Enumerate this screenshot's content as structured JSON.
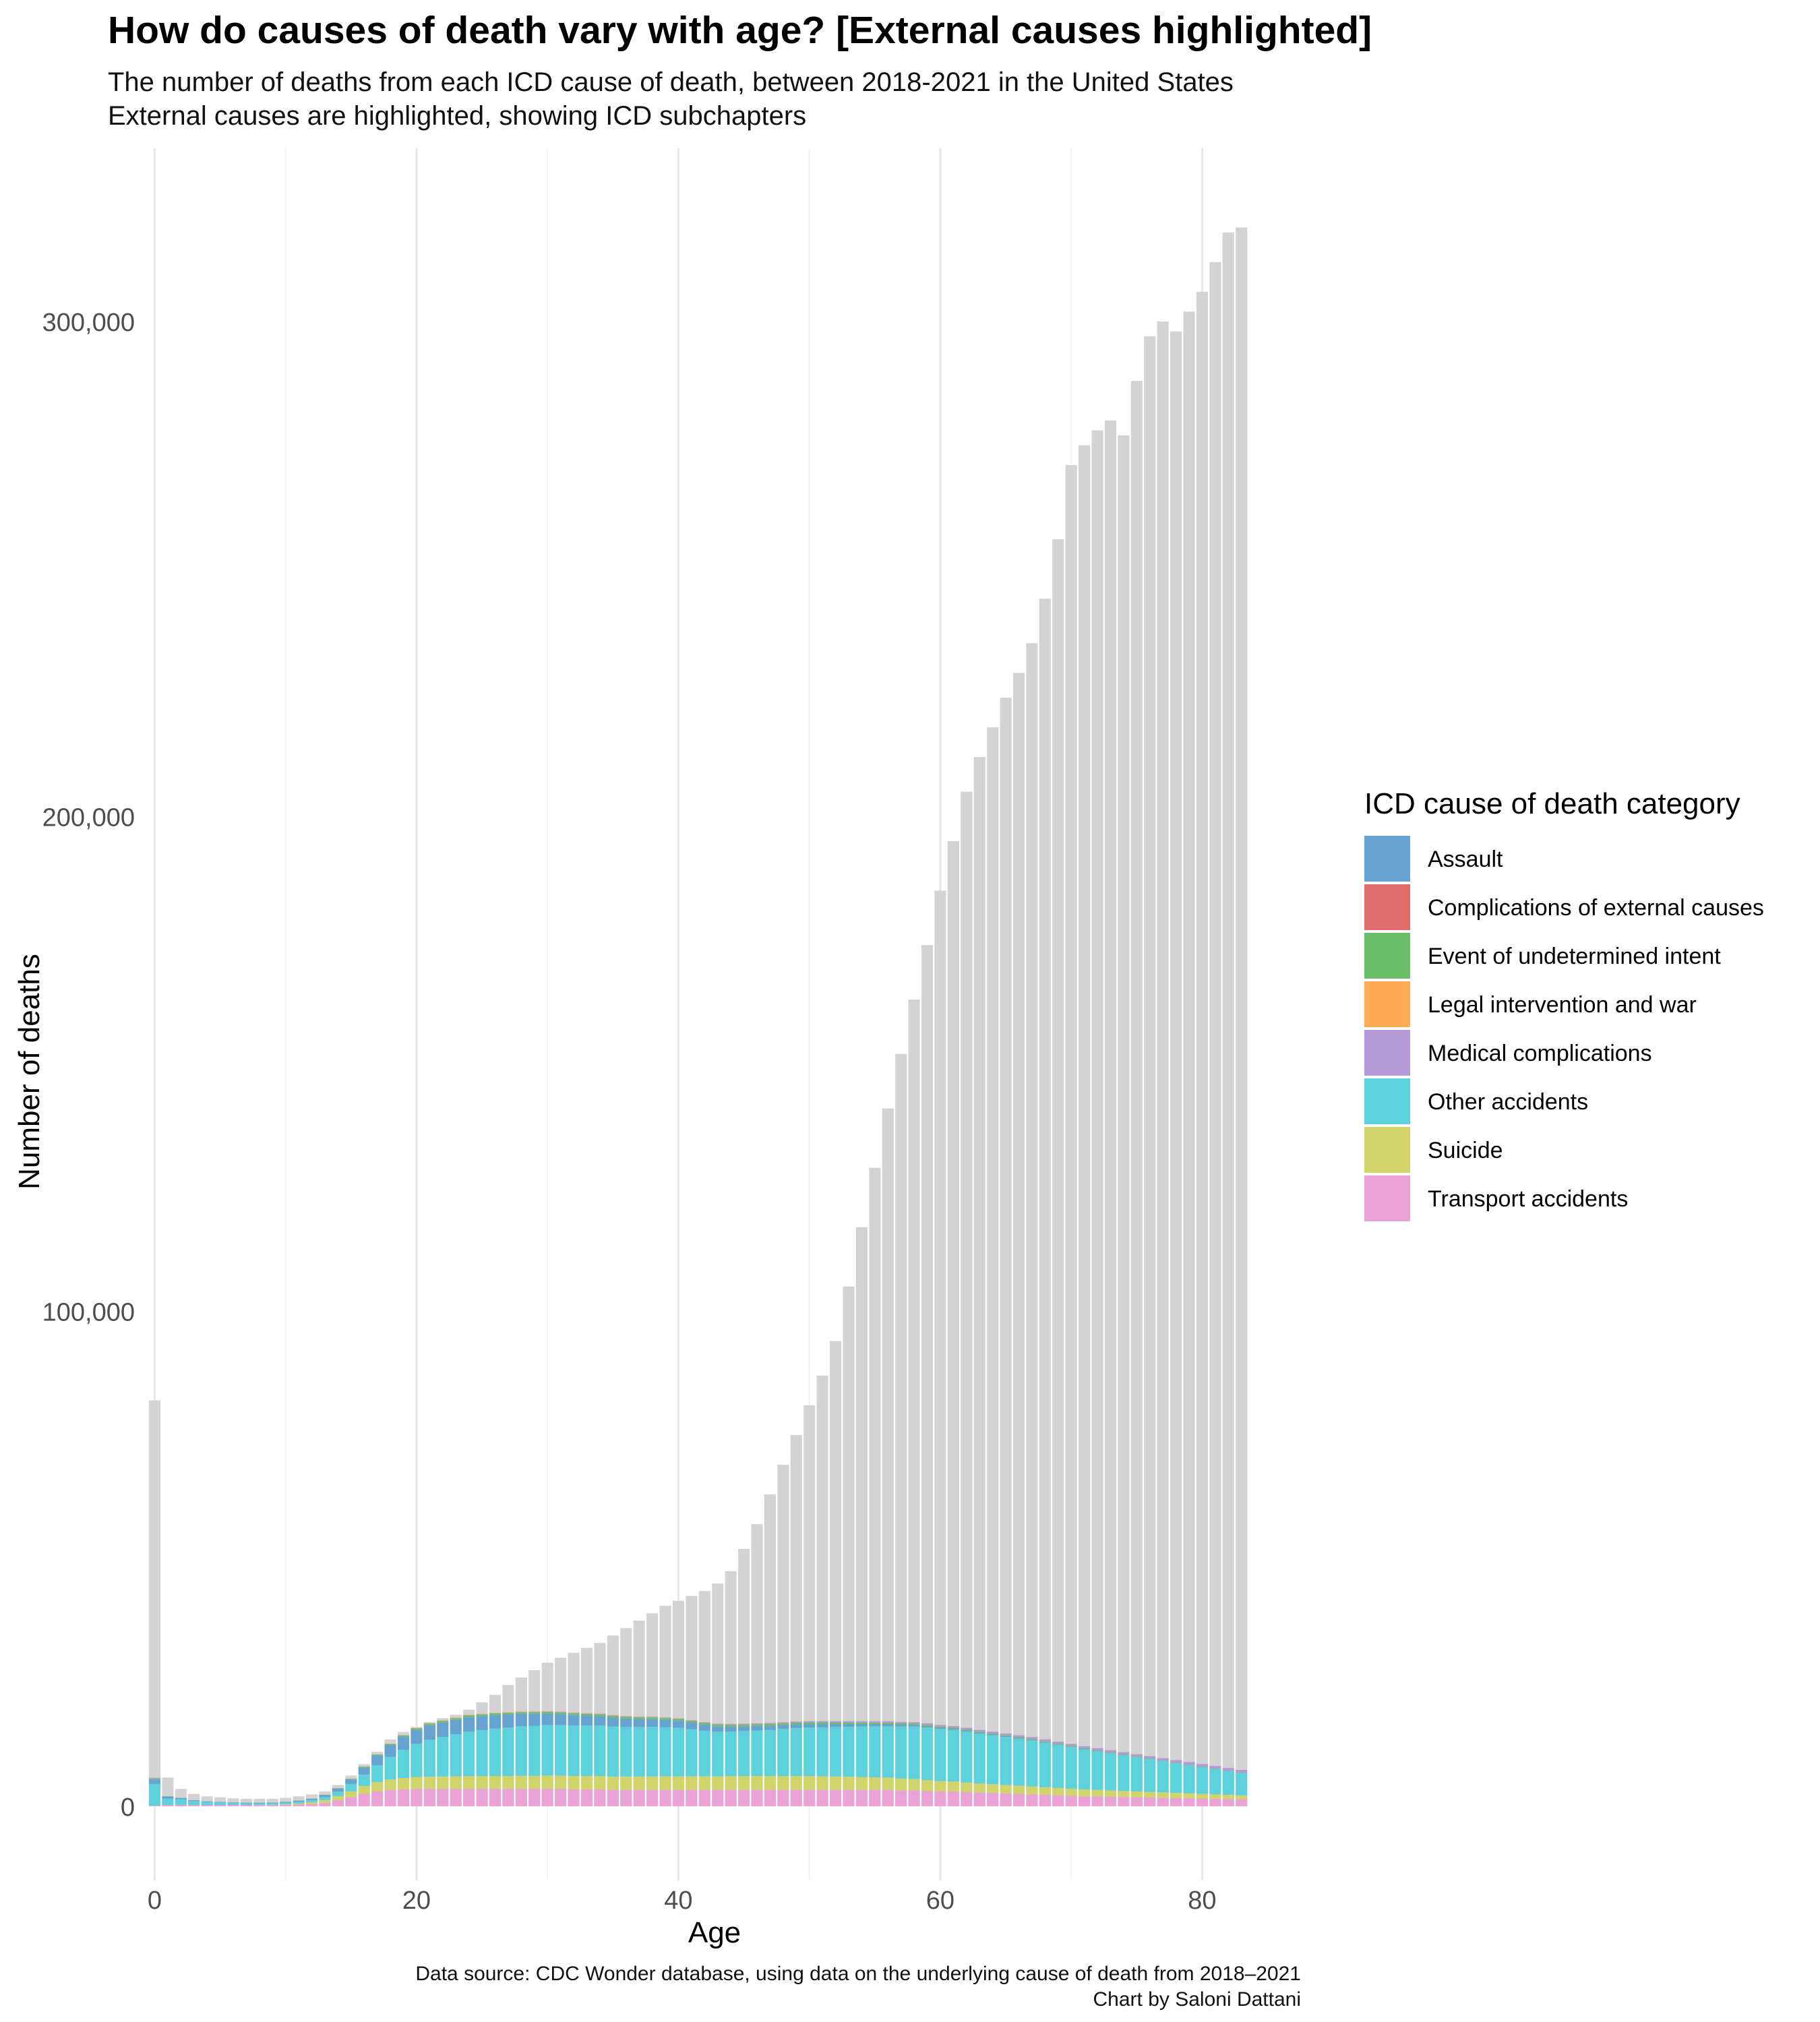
{
  "title": "How do causes of death vary with age? [External causes highlighted]",
  "subtitle_line1": "The number of deaths from each ICD cause of death, between 2018-2021 in the United States",
  "subtitle_line2": "External causes are highlighted, showing ICD subchapters",
  "caption_line1": "Data source: CDC Wonder database, using data on the underlying cause of death from 2018–2021",
  "caption_line2": "Chart by Saloni Dattani",
  "legend": {
    "title": "ICD cause of death category",
    "items": [
      {
        "label": "Assault",
        "color": "#66a3d2"
      },
      {
        "label": "Complications of external causes",
        "color": "#e06c6c"
      },
      {
        "label": "Event of undetermined intent",
        "color": "#6bbf6b"
      },
      {
        "label": "Legal intervention and war",
        "color": "#ffaa55"
      },
      {
        "label": "Medical complications",
        "color": "#b49ad6"
      },
      {
        "label": "Other accidents",
        "color": "#5dd2dd"
      },
      {
        "label": "Suicide",
        "color": "#d0d46a"
      },
      {
        "label": "Transport accidents",
        "color": "#eba2d6"
      }
    ]
  },
  "chart_data": {
    "type": "bar",
    "stacked": true,
    "xlabel": "Age",
    "ylabel": "Number of deaths",
    "x_ticks": [
      0,
      20,
      40,
      60,
      80
    ],
    "y_ticks": [
      0,
      100000,
      200000,
      300000
    ],
    "y_tick_labels": [
      "0",
      "100,000",
      "200,000",
      "300,000"
    ],
    "xlim": [
      -1,
      86
    ],
    "ylim": [
      -15000,
      335000
    ],
    "grid": "vertical major and minor lines",
    "background_series": {
      "name": "All causes",
      "color": "#d3d3d3"
    },
    "ages": [
      0,
      1,
      2,
      3,
      4,
      5,
      6,
      7,
      8,
      9,
      10,
      11,
      12,
      13,
      14,
      15,
      16,
      17,
      18,
      19,
      20,
      21,
      22,
      23,
      24,
      25,
      26,
      27,
      28,
      29,
      30,
      31,
      32,
      33,
      34,
      35,
      36,
      37,
      38,
      39,
      40,
      41,
      42,
      43,
      44,
      45,
      46,
      47,
      48,
      49,
      50,
      51,
      52,
      53,
      54,
      55,
      56,
      57,
      58,
      59,
      60,
      61,
      62,
      63,
      64,
      65,
      66,
      67,
      68,
      69,
      70,
      71,
      72,
      73,
      74,
      75,
      76,
      77,
      78,
      79,
      80,
      81,
      82,
      83,
      84
    ],
    "total_deaths": [
      82000,
      5800,
      3500,
      2500,
      2000,
      1800,
      1600,
      1500,
      1500,
      1500,
      1700,
      2000,
      2400,
      3000,
      4300,
      6200,
      8500,
      11000,
      13500,
      15000,
      16000,
      17000,
      17800,
      18500,
      19500,
      21000,
      22500,
      24500,
      26000,
      27500,
      29000,
      30000,
      31000,
      32000,
      33000,
      34500,
      36000,
      37500,
      39000,
      40500,
      41500,
      42500,
      43500,
      45000,
      47500,
      52000,
      57000,
      63000,
      69000,
      75000,
      81000,
      87000,
      94000,
      105000,
      117000,
      129000,
      141000,
      152000,
      163000,
      174000,
      185000,
      195000,
      205000,
      212000,
      218000,
      224000,
      229000,
      235000,
      244000,
      256000,
      271000,
      275000,
      278000,
      280000,
      277000,
      288000,
      297000,
      300000,
      298000,
      302000,
      306000,
      312000,
      318000,
      319000,
      0
    ],
    "series": [
      {
        "name": "Transport accidents",
        "values": [
          100,
          250,
          300,
          250,
          250,
          250,
          250,
          250,
          250,
          250,
          300,
          350,
          450,
          700,
          1200,
          1800,
          2500,
          3000,
          3300,
          3400,
          3500,
          3500,
          3500,
          3500,
          3500,
          3500,
          3500,
          3500,
          3500,
          3500,
          3500,
          3500,
          3400,
          3400,
          3400,
          3300,
          3300,
          3300,
          3300,
          3300,
          3300,
          3300,
          3300,
          3300,
          3300,
          3300,
          3300,
          3300,
          3300,
          3300,
          3300,
          3300,
          3300,
          3300,
          3300,
          3300,
          3300,
          3200,
          3200,
          3100,
          3000,
          3000,
          2900,
          2800,
          2700,
          2600,
          2500,
          2400,
          2300,
          2200,
          2100,
          2000,
          1950,
          1900,
          1850,
          1800,
          1750,
          1700,
          1650,
          1600,
          1550,
          1500,
          1450,
          1400,
          0
        ]
      },
      {
        "name": "Suicide",
        "values": [
          0,
          0,
          0,
          0,
          0,
          0,
          0,
          0,
          20,
          50,
          100,
          200,
          350,
          550,
          850,
          1200,
          1600,
          1900,
          2100,
          2300,
          2400,
          2450,
          2500,
          2550,
          2600,
          2600,
          2600,
          2600,
          2650,
          2650,
          2700,
          2700,
          2700,
          2700,
          2700,
          2700,
          2700,
          2700,
          2750,
          2750,
          2750,
          2750,
          2750,
          2750,
          2800,
          2800,
          2800,
          2800,
          2800,
          2800,
          2800,
          2750,
          2700,
          2650,
          2600,
          2550,
          2500,
          2400,
          2300,
          2200,
          2100,
          2000,
          1900,
          1800,
          1750,
          1700,
          1650,
          1600,
          1550,
          1500,
          1450,
          1400,
          1350,
          1300,
          1250,
          1200,
          1150,
          1100,
          1050,
          1000,
          950,
          900,
          850,
          800,
          0
        ]
      },
      {
        "name": "Other accidents",
        "values": [
          4400,
          1300,
          1100,
          800,
          600,
          500,
          400,
          350,
          320,
          300,
          330,
          380,
          450,
          600,
          900,
          1500,
          2300,
          3400,
          4600,
          5700,
          6700,
          7500,
          8000,
          8500,
          9000,
          9300,
          9600,
          9800,
          10000,
          10100,
          10200,
          10200,
          10200,
          10200,
          10200,
          10100,
          10000,
          10000,
          10000,
          9900,
          9800,
          9500,
          9200,
          9000,
          9000,
          9100,
          9200,
          9300,
          9500,
          9700,
          9800,
          9900,
          10000,
          10100,
          10200,
          10300,
          10400,
          10500,
          10600,
          10600,
          10500,
          10400,
          10300,
          10100,
          9900,
          9700,
          9500,
          9300,
          9000,
          8700,
          8400,
          8100,
          7800,
          7500,
          7200,
          6900,
          6600,
          6300,
          6000,
          5700,
          5400,
          5100,
          4800,
          4500,
          0
        ]
      },
      {
        "name": "Assault",
        "values": [
          900,
          400,
          250,
          150,
          120,
          100,
          100,
          100,
          100,
          110,
          130,
          180,
          250,
          400,
          600,
          900,
          1400,
          1900,
          2300,
          2600,
          2800,
          2900,
          2900,
          2900,
          2900,
          2800,
          2700,
          2600,
          2500,
          2400,
          2300,
          2200,
          2100,
          2000,
          1900,
          1800,
          1700,
          1600,
          1550,
          1500,
          1400,
          1300,
          1200,
          1100,
          1000,
          950,
          900,
          850,
          800,
          750,
          700,
          650,
          600,
          550,
          500,
          450,
          400,
          350,
          300,
          270,
          240,
          210,
          180,
          150,
          130,
          110,
          100,
          90,
          80,
          70,
          60,
          55,
          50,
          45,
          40,
          35,
          30,
          28,
          26,
          24,
          22,
          20,
          18,
          16,
          0
        ]
      },
      {
        "name": "Event of undetermined intent",
        "values": [
          200,
          50,
          30,
          20,
          20,
          20,
          20,
          20,
          20,
          20,
          25,
          30,
          40,
          60,
          90,
          130,
          180,
          230,
          270,
          300,
          320,
          330,
          340,
          350,
          350,
          350,
          350,
          350,
          350,
          350,
          350,
          350,
          350,
          350,
          350,
          350,
          350,
          350,
          350,
          350,
          350,
          350,
          350,
          350,
          350,
          350,
          350,
          350,
          350,
          350,
          350,
          340,
          330,
          320,
          310,
          300,
          290,
          280,
          270,
          260,
          250,
          240,
          230,
          220,
          210,
          200,
          190,
          180,
          170,
          160,
          150,
          140,
          130,
          120,
          110,
          100,
          95,
          90,
          85,
          80,
          75,
          70,
          65,
          60,
          0
        ]
      },
      {
        "name": "Medical complications",
        "values": [
          150,
          30,
          20,
          15,
          15,
          15,
          15,
          15,
          15,
          15,
          15,
          20,
          20,
          20,
          25,
          25,
          30,
          30,
          35,
          35,
          40,
          45,
          50,
          55,
          60,
          65,
          70,
          75,
          80,
          85,
          90,
          95,
          100,
          105,
          110,
          115,
          120,
          125,
          130,
          135,
          140,
          145,
          150,
          160,
          170,
          180,
          190,
          200,
          210,
          220,
          230,
          240,
          250,
          260,
          270,
          280,
          290,
          300,
          310,
          320,
          330,
          340,
          350,
          360,
          370,
          380,
          390,
          400,
          410,
          420,
          430,
          440,
          450,
          460,
          470,
          480,
          490,
          500,
          510,
          520,
          530,
          540,
          550,
          560,
          0
        ]
      },
      {
        "name": "Legal intervention and war",
        "values": [
          0,
          0,
          0,
          0,
          0,
          0,
          0,
          0,
          0,
          0,
          0,
          0,
          0,
          0,
          5,
          10,
          20,
          30,
          40,
          50,
          60,
          65,
          70,
          70,
          70,
          70,
          70,
          70,
          70,
          70,
          70,
          70,
          70,
          65,
          65,
          60,
          60,
          55,
          55,
          50,
          50,
          45,
          45,
          40,
          40,
          35,
          35,
          30,
          30,
          25,
          25,
          20,
          20,
          20,
          15,
          15,
          15,
          10,
          10,
          10,
          10,
          10,
          10,
          10,
          5,
          5,
          5,
          5,
          5,
          5,
          5,
          5,
          5,
          5,
          5,
          5,
          5,
          5,
          5,
          5,
          5,
          5,
          5,
          5,
          0
        ]
      },
      {
        "name": "Complications of external causes",
        "values": [
          0,
          0,
          0,
          0,
          0,
          0,
          0,
          0,
          0,
          0,
          0,
          0,
          0,
          0,
          0,
          0,
          0,
          0,
          0,
          0,
          0,
          0,
          0,
          0,
          0,
          0,
          0,
          0,
          0,
          0,
          0,
          0,
          0,
          0,
          0,
          0,
          0,
          0,
          0,
          0,
          0,
          0,
          0,
          0,
          0,
          0,
          0,
          0,
          0,
          0,
          0,
          0,
          0,
          0,
          0,
          0,
          0,
          0,
          0,
          0,
          0,
          0,
          0,
          0,
          0,
          0,
          0,
          0,
          0,
          0,
          0,
          0,
          0,
          0,
          0,
          0,
          0,
          0,
          0,
          0,
          0,
          0,
          0,
          0,
          0
        ]
      }
    ]
  }
}
